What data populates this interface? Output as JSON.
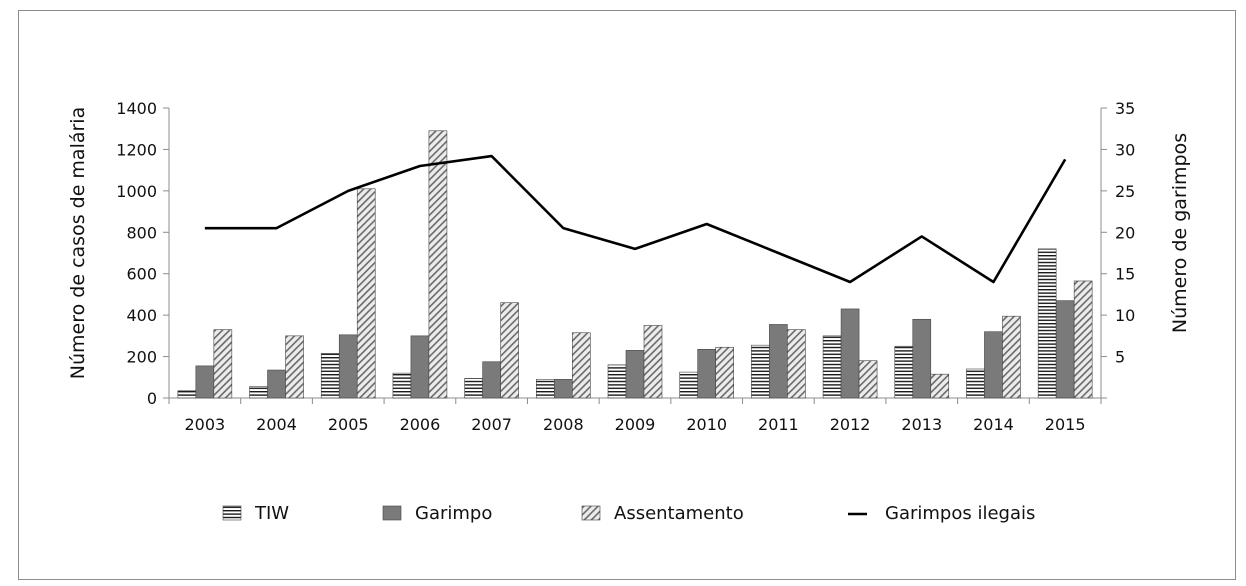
{
  "chart_data": {
    "type": "bar",
    "categories": [
      "2003",
      "2004",
      "2005",
      "2006",
      "2007",
      "2008",
      "2009",
      "2010",
      "2011",
      "2012",
      "2013",
      "2014",
      "2015"
    ],
    "series": [
      {
        "name": "TIW",
        "type": "bar",
        "axis": "left",
        "values": [
          35,
          55,
          215,
          120,
          95,
          90,
          160,
          125,
          255,
          300,
          250,
          140,
          720
        ]
      },
      {
        "name": "Garimpo",
        "type": "bar",
        "axis": "left",
        "values": [
          155,
          135,
          305,
          300,
          175,
          90,
          230,
          235,
          355,
          430,
          380,
          320,
          470
        ]
      },
      {
        "name": "Assentamento",
        "type": "bar",
        "axis": "left",
        "values": [
          330,
          300,
          1010,
          1290,
          460,
          315,
          350,
          245,
          330,
          180,
          115,
          395,
          565
        ]
      },
      {
        "name": "Garimpos ilegais",
        "type": "line",
        "axis": "right",
        "values": [
          20.5,
          20.5,
          25,
          28,
          29.2,
          20.5,
          18,
          21,
          17.5,
          14,
          19.5,
          14,
          28.8
        ]
      }
    ],
    "ylabel": "Número de casos de malária",
    "y2label": "Número de garimpos",
    "ylim": [
      0,
      1400
    ],
    "y2lim": [
      0,
      35
    ],
    "yticks": [
      "0",
      "200",
      "400",
      "600",
      "800",
      "1000",
      "1200",
      "1400"
    ],
    "y2ticks": [
      "5",
      "10",
      "15",
      "20",
      "25",
      "30",
      "35"
    ],
    "grid": false,
    "legend_position": "bottom",
    "colors": {
      "TIW": "#ffffff",
      "Garimpo": "#7a7a7a",
      "Assentamento": "#d0d0d0",
      "line": "#000000"
    }
  }
}
